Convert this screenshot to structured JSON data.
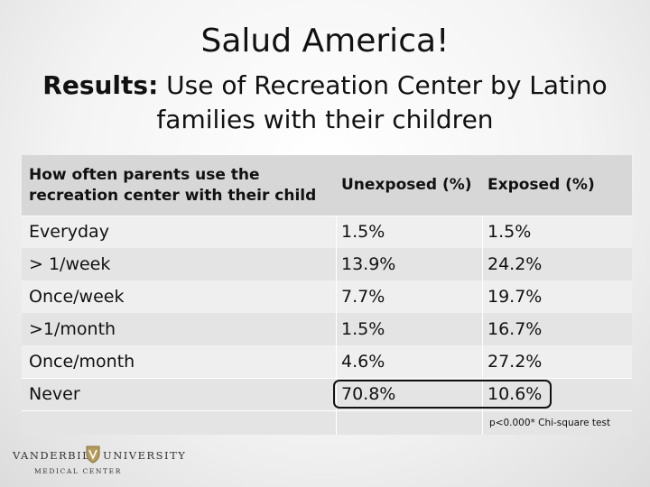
{
  "slide": {
    "title": "Salud America!",
    "subtitle_bold": "Results:",
    "subtitle_rest": " Use of Recreation Center by Latino families with  their children"
  },
  "table": {
    "headers": [
      "How often parents use the recreation center with their child",
      "Unexposed (%)",
      "Exposed (%)"
    ],
    "rows": [
      [
        "Everyday",
        "1.5%",
        "1.5%"
      ],
      [
        "> 1/week",
        "13.9%",
        "24.2%"
      ],
      [
        "Once/week",
        "7.7%",
        "19.7%"
      ],
      [
        ">1/month",
        "1.5%",
        "16.7%"
      ],
      [
        "Once/month",
        "4.6%",
        "27.2%"
      ],
      [
        "Never",
        "70.8%",
        "10.6%"
      ]
    ],
    "footnote": "p<0.000* Chi-square test"
  },
  "logo": {
    "left": "VANDERBILT",
    "right": "UNIVERSITY",
    "sub": "MEDICAL CENTER"
  }
}
